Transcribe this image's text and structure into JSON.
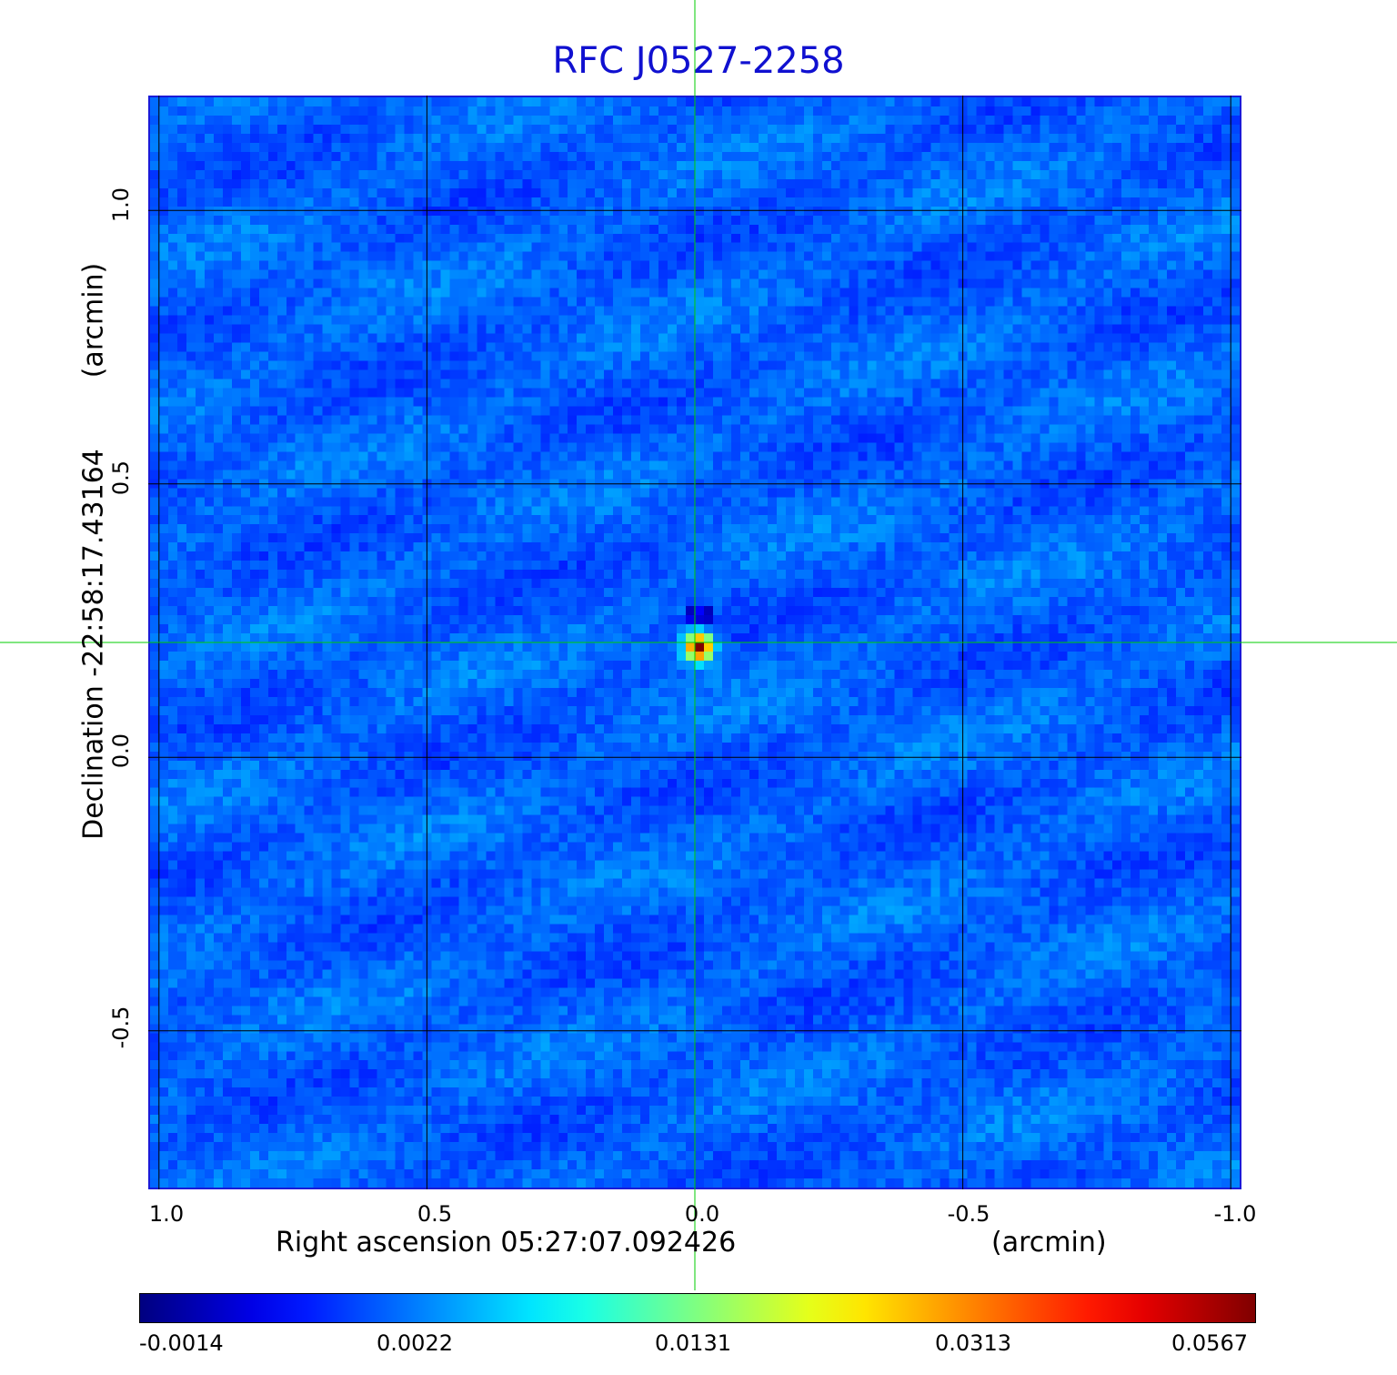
{
  "title": "RFC J0527-2258",
  "axes": {
    "xlabel": "Right ascension  05:27:07.092426",
    "xunit": "(arcmin)",
    "ylabel": "Declination  -22:58:17.43164",
    "yunit": "(arcmin)",
    "x_ticks": [
      "1.0",
      "0.5",
      "0.0",
      "-0.5",
      "-1.0"
    ],
    "y_ticks": [
      "1.0",
      "0.5",
      "0.0",
      "-0.5"
    ],
    "x_range_arcmin": [
      1.02,
      -1.02
    ],
    "y_range_arcmin": [
      -0.79,
      1.21
    ],
    "grid": true
  },
  "image": {
    "colormap": "jet",
    "background_level": 0.0022,
    "source": {
      "x_arcmin": 0.0,
      "y_arcmin": 0.21,
      "peak": 0.0567
    },
    "crosshair_color": "#00cc00",
    "crosshair_x_arcmin": 0.0,
    "crosshair_y_arcmin": 0.21
  },
  "colorbar": {
    "labels": [
      "-0.0014",
      "0.0022",
      "0.0131",
      "0.0313",
      "0.0567"
    ]
  },
  "colors": {
    "title": "#1010d0",
    "frame": "#1a1ad8",
    "grid": "#000000",
    "crosshair": "#00cc00"
  }
}
